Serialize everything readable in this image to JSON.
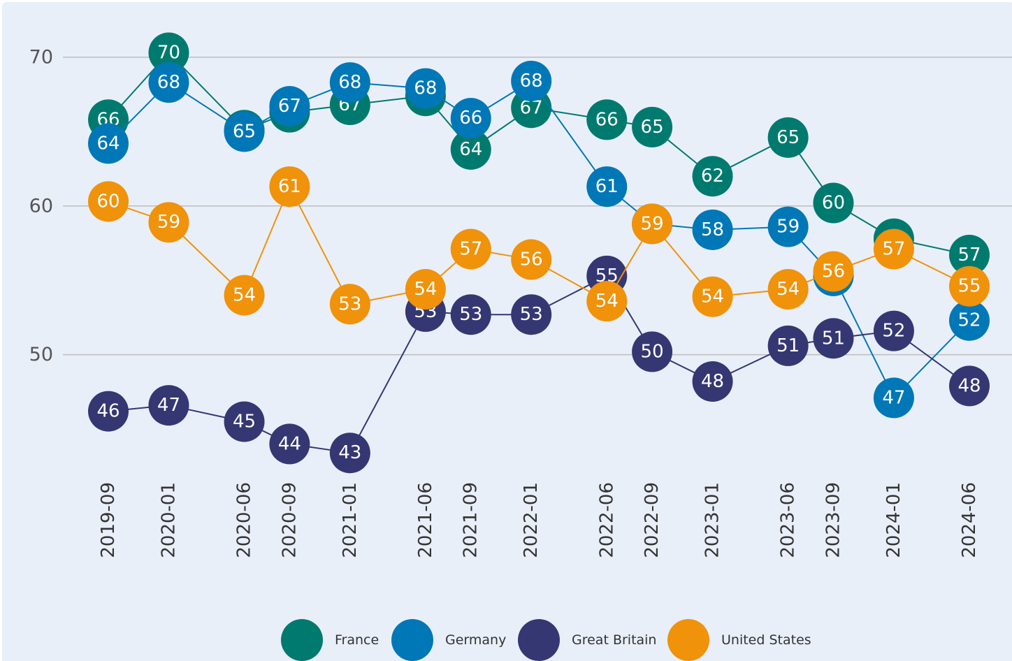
{
  "chart_data": {
    "type": "line",
    "x": [
      "2019-09",
      "2020-01",
      "2020-06",
      "2020-09",
      "2021-01",
      "2021-06",
      "2021-09",
      "2022-01",
      "2022-06",
      "2022-09",
      "2023-01",
      "2023-06",
      "2023-09",
      "2024-01",
      "2024-06"
    ],
    "ylim": [
      42,
      73
    ],
    "yticks": [
      50,
      60,
      70
    ],
    "grid": true,
    "legend": "bottom",
    "series": [
      {
        "name": "France",
        "color": "#007a6e",
        "values": [
          65.8,
          70.3,
          65.1,
          66.3,
          66.8,
          67.4,
          63.8,
          66.6,
          65.8,
          65.3,
          62.0,
          64.6,
          60.2,
          57.8,
          56.7
        ],
        "value_labels": [
          "66",
          "70",
          "65",
          "66",
          "67",
          "67",
          "64",
          "67",
          "66",
          "65",
          "62",
          "65",
          "60",
          "58",
          "57"
        ]
      },
      {
        "name": "Germany",
        "color": "#0077b6",
        "values": [
          64.2,
          68.3,
          65.0,
          66.7,
          68.3,
          67.9,
          65.9,
          68.4,
          61.3,
          58.8,
          58.4,
          58.6,
          55.3,
          47.1,
          52.3
        ],
        "value_labels": [
          "64",
          "68",
          "65",
          "67",
          "68",
          "68",
          "66",
          "68",
          "61",
          "59",
          "58",
          "59",
          "55",
          "47",
          "52"
        ]
      },
      {
        "name": "Great Britain",
        "color": "#353773",
        "values": [
          46.2,
          46.6,
          45.5,
          44.0,
          43.4,
          52.9,
          52.7,
          52.7,
          55.3,
          50.2,
          48.2,
          50.6,
          51.1,
          51.6,
          47.9
        ],
        "value_labels": [
          "46",
          "47",
          "45",
          "44",
          "43",
          "53",
          "53",
          "53",
          "55",
          "50",
          "48",
          "51",
          "51",
          "52",
          "48"
        ]
      },
      {
        "name": "United States",
        "color": "#f0920a",
        "values": [
          60.3,
          58.9,
          54.0,
          61.3,
          53.4,
          54.4,
          57.1,
          56.4,
          53.6,
          58.8,
          53.9,
          54.4,
          55.6,
          57.1,
          54.6
        ],
        "value_labels": [
          "60",
          "59",
          "54",
          "61",
          "53",
          "54",
          "57",
          "56",
          "54",
          "59",
          "54",
          "54",
          "56",
          "57",
          "55"
        ]
      }
    ]
  }
}
